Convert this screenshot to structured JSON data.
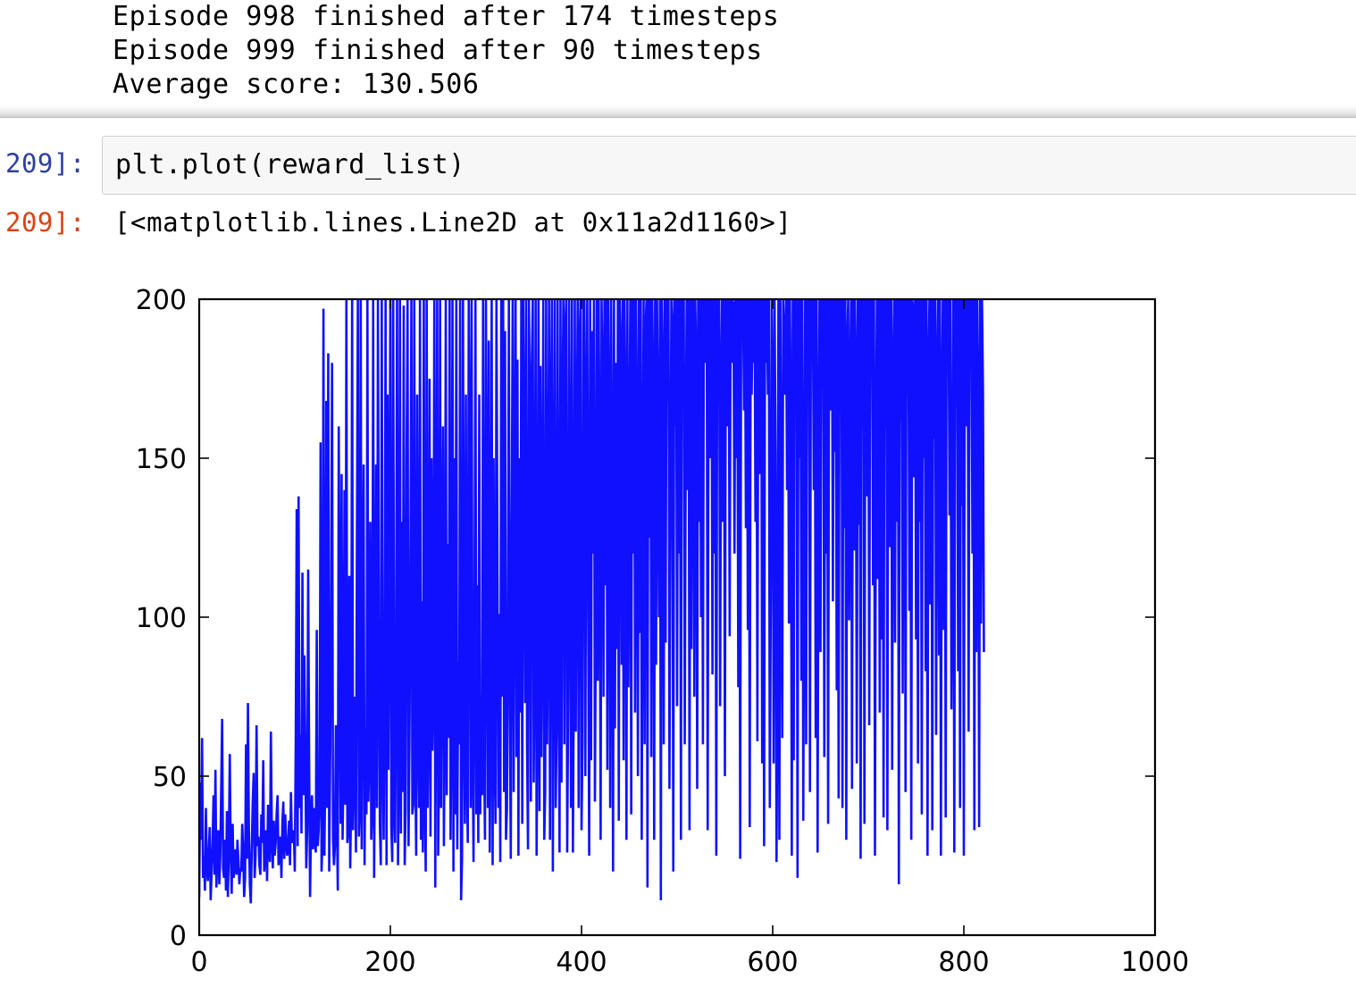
{
  "output_lines": [
    "Episode 998 finished after 174 timesteps",
    "Episode 999 finished after 90 timesteps",
    "Average score: 130.506"
  ],
  "cell": {
    "in_prompt": "209]:",
    "code": "plt.plot(reward_list)",
    "out_prompt": "209]:",
    "out_repr": "[<matplotlib.lines.Line2D at 0x11a2d1160>]"
  },
  "colors": {
    "line": "#1010ff",
    "in_prompt": "#303f9f",
    "out_prompt": "#d84315"
  },
  "chart_data": {
    "type": "line",
    "title": "",
    "xlabel": "",
    "ylabel": "",
    "xlim": [
      0,
      1000
    ],
    "ylim": [
      0,
      200
    ],
    "x_ticks": [
      0,
      200,
      400,
      600,
      800,
      1000
    ],
    "y_ticks": [
      0,
      50,
      100,
      150,
      200
    ],
    "grid": false,
    "legend": "none",
    "series": [
      {
        "name": "",
        "x_start": 0,
        "x_step": 1,
        "values": [
          12,
          48,
          30,
          62,
          18,
          25,
          14,
          40,
          22,
          17,
          26,
          34,
          11,
          20,
          29,
          44,
          19,
          52,
          15,
          27,
          33,
          16,
          24,
          46,
          68,
          21,
          18,
          30,
          14,
          39,
          12,
          28,
          57,
          25,
          13,
          35,
          18,
          22,
          27,
          19,
          30,
          24,
          16,
          21,
          20,
          35,
          27,
          12,
          18,
          60,
          24,
          73,
          33,
          16,
          10,
          27,
          42,
          51,
          18,
          25,
          66,
          28,
          31,
          22,
          19,
          38,
          29,
          55,
          20,
          26,
          33,
          17,
          41,
          28,
          23,
          64,
          32,
          21,
          36,
          25,
          29,
          38,
          44,
          22,
          26,
          31,
          18,
          35,
          42,
          24,
          38,
          30,
          25,
          27,
          36,
          22,
          45,
          29,
          30,
          33,
          20,
          61,
          134,
          28,
          138,
          40,
          63,
          32,
          114,
          44,
          88,
          60,
          21,
          33,
          115,
          57,
          12,
          35,
          44,
          27,
          40,
          30,
          26,
          96,
          28,
          33,
          44,
          155,
          20,
          30,
          197,
          25,
          55,
          168,
          40,
          183,
          20,
          55,
          105,
          180,
          30,
          22,
          28,
          66,
          38,
          14,
          160,
          92,
          35,
          145,
          30,
          52,
          140,
          41,
          200,
          29,
          33,
          113,
          21,
          44,
          200,
          33,
          56,
          75,
          26,
          125,
          200,
          31,
          40,
          200,
          27,
          90,
          148,
          22,
          65,
          38,
          200,
          42,
          58,
          130,
          30,
          40,
          200,
          18,
          66,
          148,
          40,
          200,
          98,
          35,
          22,
          200,
          60,
          30,
          85,
          200,
          22,
          170,
          52,
          120,
          200,
          34,
          23,
          200,
          40,
          29,
          90,
          200,
          22,
          55,
          200,
          32,
          130,
          45,
          198,
          22,
          40,
          151,
          200,
          28,
          60,
          120,
          200,
          38,
          41,
          200,
          58,
          25,
          170,
          65,
          40,
          200,
          30,
          105,
          26,
          200,
          47,
          20,
          200,
          40,
          68,
          175,
          31,
          150,
          58,
          80,
          200,
          15,
          100,
          200,
          25,
          55,
          200,
          40,
          100,
          160,
          28,
          72,
          200,
          44,
          123,
          62,
          200,
          30,
          71,
          200,
          20,
          150,
          38,
          200,
          27,
          86,
          60,
          200,
          11,
          24,
          200,
          72,
          35,
          170,
          53,
          29,
          200,
          145,
          40,
          200,
          62,
          23,
          96,
          200,
          38,
          110,
          29,
          170,
          38,
          75,
          44,
          200,
          60,
          30,
          200,
          120,
          40,
          187,
          26,
          74,
          200,
          22,
          150,
          61,
          35,
          200,
          124,
          40,
          101,
          23,
          200,
          75,
          200,
          45,
          190,
          30,
          40,
          104,
          200,
          70,
          24,
          130,
          200,
          45,
          140,
          200,
          56,
          181,
          25,
          150,
          70,
          200,
          35,
          200,
          150,
          73,
          200,
          60,
          27,
          200,
          160,
          42,
          180,
          200,
          48,
          94,
          200,
          25,
          81,
          200,
          39,
          179,
          56,
          110,
          200,
          30,
          45,
          200,
          60,
          109,
          200,
          30,
          156,
          200,
          20,
          113,
          200,
          40,
          66,
          200,
          85,
          26,
          200,
          48,
          160,
          200,
          60,
          190,
          200,
          26,
          70,
          200,
          130,
          40,
          200,
          26,
          86,
          200,
          64,
          150,
          200,
          40,
          185,
          200,
          33,
          60,
          200,
          200,
          50,
          160,
          200,
          100,
          25,
          200,
          55,
          190,
          120,
          200,
          42,
          100,
          200,
          80,
          200,
          140,
          30,
          200,
          173,
          75,
          200,
          110,
          200,
          52,
          200,
          160,
          40,
          200,
          130,
          20,
          200,
          65,
          180,
          90,
          200,
          36,
          200,
          180,
          85,
          200,
          55,
          200,
          160,
          30,
          200,
          78,
          140,
          200,
          38,
          200,
          120,
          200,
          70,
          200,
          150,
          50,
          200,
          95,
          200,
          30,
          130,
          200,
          60,
          190,
          200,
          15,
          200,
          125,
          200,
          56,
          200,
          170,
          30,
          200,
          85,
          200,
          150,
          100,
          200,
          11,
          200,
          175,
          60,
          200,
          92,
          200,
          168,
          200,
          46,
          130,
          200,
          190,
          20,
          200,
          160,
          200,
          72,
          200,
          120,
          200,
          30,
          200,
          180,
          200,
          60,
          150,
          200,
          140,
          200,
          33,
          200,
          90,
          200,
          200,
          75,
          200,
          180,
          46,
          200,
          130,
          200,
          100,
          200,
          60,
          200,
          200,
          180,
          200,
          33,
          200,
          150,
          200,
          200,
          82,
          200,
          120,
          200,
          25,
          200,
          190,
          200,
          72,
          168,
          200,
          130,
          200,
          50,
          200,
          200,
          160,
          200,
          94,
          200,
          180,
          200,
          198,
          120,
          200,
          150,
          200,
          78,
          200,
          24,
          200,
          190,
          200,
          165,
          200,
          128,
          200,
          96,
          200,
          34,
          200,
          170,
          200,
          180,
          200,
          130,
          200,
          61,
          200,
          200,
          145,
          200,
          54,
          200,
          28,
          200,
          180,
          200,
          170,
          200,
          40,
          105,
          200,
          172,
          54,
          200,
          150,
          23,
          80,
          200,
          30,
          200,
          123,
          62,
          200,
          187,
          170,
          200,
          140,
          200,
          98,
          200,
          160,
          25,
          200,
          55,
          200,
          172,
          200,
          18,
          200,
          150,
          200,
          80,
          200,
          36,
          125,
          200,
          60,
          200,
          178,
          200,
          45,
          200,
          190,
          200,
          140,
          200,
          62,
          200,
          26,
          150,
          200,
          89,
          200,
          173,
          200,
          56,
          200,
          120,
          200,
          35,
          200,
          200,
          165,
          200,
          105,
          200,
          152,
          200,
          77,
          200,
          43,
          200,
          176,
          200,
          40,
          200,
          128,
          200,
          30,
          183,
          200,
          99,
          170,
          200,
          46,
          200,
          121,
          200,
          175,
          54,
          200,
          129,
          200,
          24,
          200,
          160,
          200,
          35,
          200,
          200,
          138,
          200,
          66,
          200,
          179,
          200,
          110,
          200,
          25,
          150,
          200,
          112,
          200,
          70,
          200,
          93,
          200,
          37,
          200,
          160,
          200,
          33,
          200,
          200,
          122,
          200,
          52,
          174,
          200,
          92,
          200,
          130,
          200,
          16,
          200,
          162,
          200,
          76,
          200,
          200,
          45,
          200,
          170,
          200,
          102,
          200,
          30,
          200,
          197,
          144,
          200,
          93,
          200,
          54,
          200,
          130,
          200,
          38,
          200,
          150,
          200,
          83,
          200,
          25,
          175,
          200,
          104,
          200,
          33,
          200,
          156,
          200,
          63,
          175,
          200,
          88,
          200,
          25,
          165,
          200,
          96,
          200,
          37,
          200,
          189,
          200,
          132,
          200,
          71,
          120,
          200,
          26,
          200,
          169,
          200,
          83,
          200,
          40,
          200,
          135,
          200,
          25,
          200,
          200,
          160,
          200,
          64,
          200,
          178,
          200,
          120,
          200,
          33,
          200,
          89,
          200,
          164,
          34,
          200,
          98,
          200,
          172,
          89
        ]
      }
    ]
  }
}
